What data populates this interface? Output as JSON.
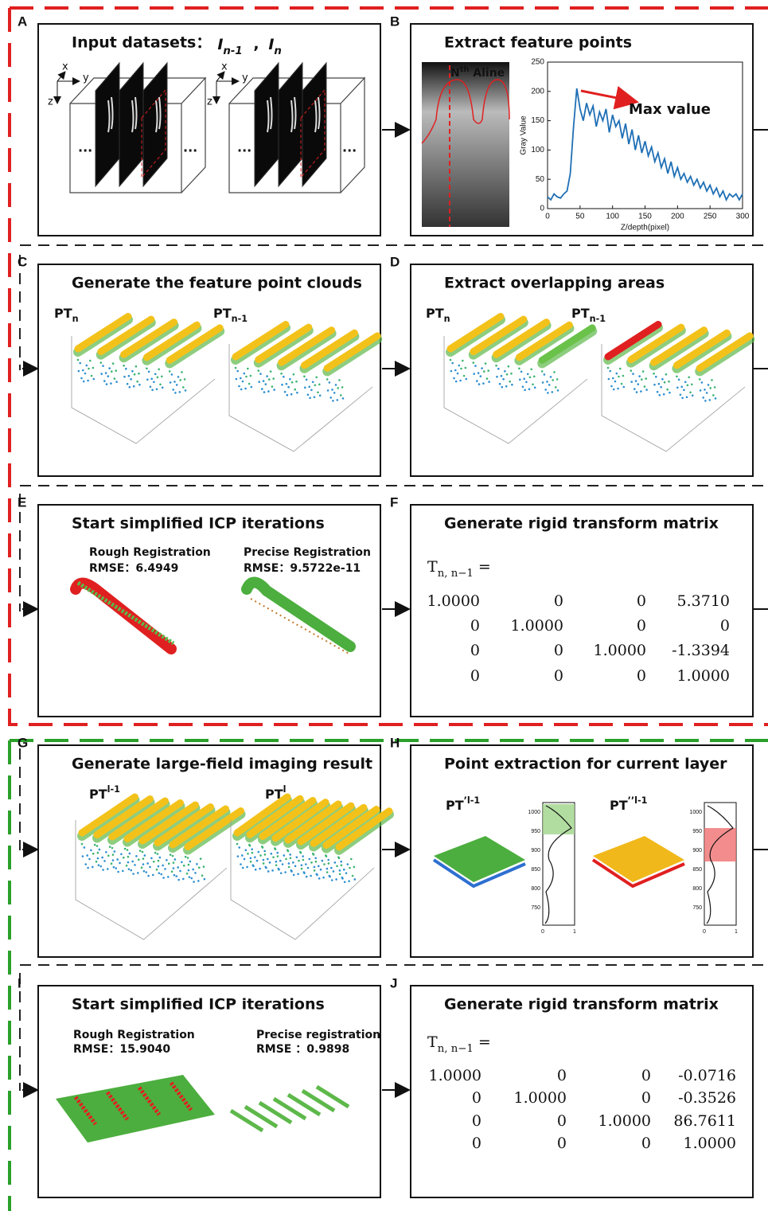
{
  "panels": [
    {
      "letter": "A",
      "title": "Input datasets：",
      "inputs": [
        {
          "base": "I",
          "sub": "n-1"
        },
        {
          "base": "I",
          "sub": "n"
        }
      ],
      "separator": ",",
      "axes": [
        "x",
        "y",
        "z"
      ],
      "ellipsis": "..."
    },
    {
      "letter": "B",
      "title": "Extract feature points",
      "image_label": {
        "base": "N",
        "sup": "th",
        "rest": " Aline"
      },
      "chart": {
        "type": "line",
        "ylabel": "Gray Value",
        "xlabel": "Z/depth(pixel)",
        "annotation": "Max value",
        "color": "#1f6fb5",
        "x": [
          0,
          5,
          10,
          15,
          20,
          25,
          30,
          35,
          40,
          45,
          50,
          55,
          60,
          65,
          70,
          75,
          80,
          85,
          90,
          95,
          100,
          105,
          110,
          115,
          120,
          125,
          130,
          135,
          140,
          145,
          150,
          155,
          160,
          165,
          170,
          175,
          180,
          185,
          190,
          195,
          200,
          205,
          210,
          215,
          220,
          225,
          230,
          235,
          240,
          245,
          250,
          255,
          260,
          265,
          270,
          275,
          280,
          285,
          290,
          295,
          300
        ],
        "values": [
          20,
          15,
          25,
          20,
          18,
          25,
          30,
          60,
          140,
          205,
          170,
          150,
          180,
          160,
          175,
          140,
          165,
          150,
          170,
          130,
          160,
          140,
          150,
          120,
          145,
          110,
          135,
          100,
          125,
          95,
          115,
          90,
          105,
          80,
          95,
          70,
          85,
          60,
          80,
          55,
          70,
          50,
          60,
          45,
          55,
          40,
          50,
          35,
          45,
          30,
          40,
          25,
          35,
          20,
          30,
          15,
          25,
          20,
          25,
          15,
          25
        ],
        "xlim": [
          0,
          300
        ],
        "ylim": [
          0,
          250
        ],
        "xticks": [
          0,
          50,
          100,
          150,
          200,
          250,
          300
        ],
        "yticks": [
          0,
          50,
          100,
          150,
          200,
          250
        ]
      }
    },
    {
      "letter": "C",
      "title": "Generate the feature point clouds",
      "labels": [
        {
          "base": "PT",
          "sub": "n"
        },
        {
          "base": "PT",
          "sub": "n-1"
        }
      ]
    },
    {
      "letter": "D",
      "title": "Extract overlapping areas",
      "labels": [
        {
          "base": "PT",
          "sub": "n"
        },
        {
          "base": "PT",
          "sub": "n-1"
        }
      ]
    },
    {
      "letter": "E",
      "title": "Start simplified  ICP iterations",
      "rough": "Rough Registration",
      "rough_rmse": "RMSE：6.4949",
      "precise": "Precise Registration",
      "precise_rmse": "RMSE：9.5722e-11"
    },
    {
      "letter": "F",
      "title": "Generate  rigid transform matrix",
      "matrix_label": {
        "base": "T",
        "sub": "n, n−1",
        "rest": " ="
      },
      "matrix": [
        [
          "1.0000",
          "0",
          "0",
          "5.3710"
        ],
        [
          "0",
          "1.0000",
          "0",
          "0"
        ],
        [
          "0",
          "0",
          "1.0000",
          "-1.3394"
        ],
        [
          "0",
          "0",
          "0",
          "1.0000"
        ]
      ]
    },
    {
      "letter": "G",
      "title": "Generate large-field imaging result",
      "labels": [
        {
          "base": "PT",
          "sup": "l-1"
        },
        {
          "base": "PT",
          "sup": "l"
        }
      ]
    },
    {
      "letter": "H",
      "title": "Point extraction for current layer",
      "labels": [
        {
          "base": "PT",
          "sup": "’l-1"
        },
        {
          "base": "PT",
          "sup": "’’l-1"
        }
      ],
      "density_yticks": [
        "1000",
        "950",
        "900",
        "850",
        "800",
        "750"
      ],
      "density_xticks": [
        "0",
        "1"
      ]
    },
    {
      "letter": "I",
      "title": "Start simplified  ICP iterations",
      "rough": "Rough Registration",
      "rough_rmse": "RMSE：15.9040",
      "precise": "Precise registration",
      "precise_rmse": "RMSE ：0.9898"
    },
    {
      "letter": "J",
      "title": "Generate  rigid transform matrix",
      "matrix_label": {
        "base": "T",
        "sub": "n, n−1",
        "rest": " ="
      },
      "matrix": [
        [
          "1.0000",
          "0",
          "0",
          "-0.0716"
        ],
        [
          "0",
          "1.0000",
          "0",
          "-0.3526"
        ],
        [
          "0",
          "0",
          "1.0000",
          "86.7611"
        ],
        [
          "0",
          "0",
          "0",
          "1.0000"
        ]
      ]
    }
  ]
}
